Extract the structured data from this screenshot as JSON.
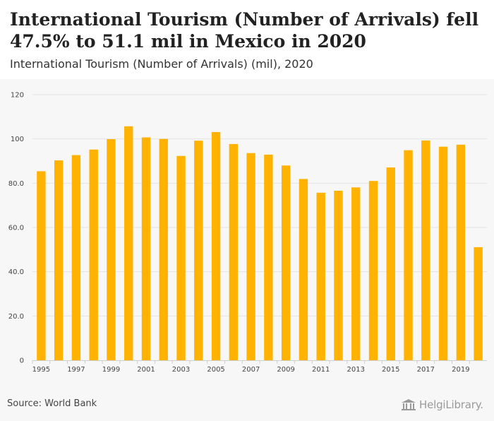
{
  "header": {
    "title": "International Tourism (Number of Arrivals) fell 47.5% to 51.1 mil in Mexico in 2020",
    "subtitle": "International Tourism (Number of Arrivals) (mil), 2020"
  },
  "footer": {
    "source": "Source: World Bank",
    "logo_text": "HelgiLibrary."
  },
  "colors": {
    "bar": "#FFB300",
    "grid": "#e3e3e3",
    "axis": "#cfcfcf"
  },
  "chart_data": {
    "type": "bar",
    "title": "International Tourism (Number of Arrivals) (mil), 2020",
    "xlabel": "",
    "ylabel": "",
    "categories": [
      "1995",
      "1996",
      "1997",
      "1998",
      "1999",
      "2000",
      "2001",
      "2002",
      "2003",
      "2004",
      "2005",
      "2006",
      "2007",
      "2008",
      "2009",
      "2010",
      "2011",
      "2012",
      "2013",
      "2014",
      "2015",
      "2016",
      "2017",
      "2018",
      "2019",
      "2020"
    ],
    "values": [
      85.4,
      90.3,
      92.7,
      95.2,
      99.9,
      105.7,
      100.7,
      100.0,
      92.3,
      99.2,
      103.1,
      97.7,
      93.6,
      92.9,
      88.0,
      81.9,
      75.7,
      76.6,
      78.1,
      81.0,
      87.1,
      94.9,
      99.3,
      96.5,
      97.4,
      51.1
    ],
    "ylim": [
      0,
      120
    ],
    "y_ticks": [
      0,
      20,
      40,
      60,
      80,
      100,
      120
    ],
    "y_tick_labels": [
      "0",
      "20.0",
      "40.0",
      "60.0",
      "80.0",
      "100",
      "120"
    ],
    "x_tick_labels": [
      "1995",
      "1997",
      "1999",
      "2001",
      "2003",
      "2005",
      "2007",
      "2009",
      "2011",
      "2013",
      "2015",
      "2017",
      "2019"
    ],
    "grid": true,
    "legend": "none"
  }
}
